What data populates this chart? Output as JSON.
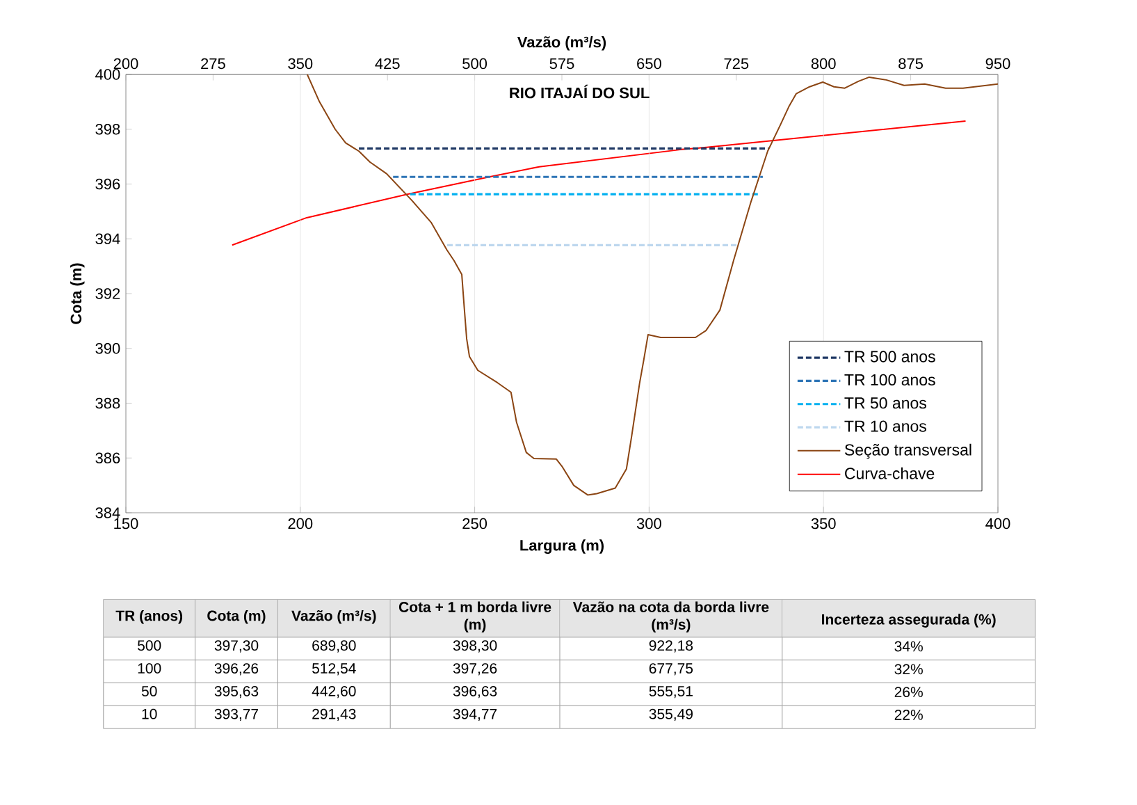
{
  "chart_data": {
    "type": "line",
    "title": "RIO ITAJAÍ DO SUL",
    "xlabel": "Largura (m)",
    "ylabel": "Cota (m)",
    "x2label": "Vazão (m³/s)",
    "xlim": [
      150,
      400
    ],
    "xticks": [
      150,
      200,
      250,
      300,
      350,
      400
    ],
    "ylim": [
      384,
      400
    ],
    "yticks": [
      384,
      386,
      388,
      390,
      392,
      394,
      396,
      398,
      400
    ],
    "x2lim": [
      200,
      950
    ],
    "x2ticks": [
      200,
      275,
      350,
      425,
      500,
      575,
      650,
      725,
      800,
      875,
      950
    ],
    "grid": "x",
    "legend": "bottom right",
    "series": [
      {
        "name": "TR 500 anos",
        "color": "#1f3864",
        "line_style": "dashed",
        "x": [
          216.8,
          334.2
        ],
        "values": [
          397.3,
          397.3
        ]
      },
      {
        "name": "TR 100 anos",
        "color": "#2e75b6",
        "line_style": "dashed",
        "x": [
          226.6,
          332.6
        ],
        "values": [
          396.26,
          396.26
        ]
      },
      {
        "name": "TR 50 anos",
        "color": "#00b0f0",
        "line_style": "dashed",
        "x": [
          231.5,
          331.2
        ],
        "values": [
          395.63,
          395.63
        ]
      },
      {
        "name": "TR 10 anos",
        "color": "#bdd7ee",
        "line_style": "dashed",
        "x": [
          242.1,
          325.6
        ],
        "values": [
          393.77,
          393.77
        ]
      },
      {
        "name": "Seção transversal",
        "color": "#8b4513",
        "line_style": "solid",
        "x": [
          202,
          205.5,
          210,
          213,
          216.8,
          220,
          224.8,
          232,
          237.5,
          242,
          244.1,
          246.3,
          247,
          247.7,
          248.5,
          250.9,
          256.5,
          260.4,
          262,
          264.8,
          267,
          273.4,
          275,
          278.4,
          282.4,
          285,
          290.3,
          293.5,
          295,
          297.3,
          298.5,
          299.7,
          303.3,
          313.3,
          316.3,
          320.3,
          324.2,
          329.2,
          334,
          337.6,
          340.2,
          342.2,
          346,
          349.8,
          353,
          356.1,
          360,
          363.1,
          368,
          373.1,
          379,
          385,
          390,
          400
        ],
        "values": [
          400,
          399.0,
          398.0,
          397.5,
          397.2,
          396.8,
          396.37,
          395.4,
          394.6,
          393.6,
          393.2,
          392.7,
          391.5,
          390.35,
          389.7,
          389.2,
          388.75,
          388.4,
          387.3,
          386.2,
          385.98,
          385.96,
          385.7,
          385.0,
          384.65,
          384.7,
          384.9,
          385.6,
          386.8,
          388.75,
          389.6,
          390.5,
          390.4,
          390.4,
          390.65,
          391.4,
          393.2,
          395.35,
          397.2,
          398.15,
          398.86,
          399.3,
          399.55,
          399.72,
          399.55,
          399.5,
          399.75,
          399.9,
          399.8,
          399.6,
          399.65,
          399.5,
          399.5,
          399.65
        ]
      },
      {
        "name": "Curva-chave",
        "color": "#ff0000",
        "line_style": "solid",
        "axis": "x2",
        "x": [
          291.43,
          355.49,
          442.6,
          512.54,
          555.51,
          677.75,
          689.8,
          922.18
        ],
        "values": [
          393.77,
          394.77,
          395.63,
          396.26,
          396.63,
          397.26,
          397.3,
          398.3
        ]
      }
    ],
    "annotations": [
      "TR (anos)",
      "Cota (m)",
      "Vazão (m³/s)",
      "Cota + 1 m borda livre (m)",
      "Vazão na cota da borda livre (m³/s)",
      "Incerteza assegurada (%)",
      "500",
      "397,30",
      "689,80",
      "398,30",
      "922,18",
      "34%",
      "100",
      "396,26",
      "512,54",
      "397,26",
      "677,75",
      "32%",
      "50",
      "395,63",
      "442,60",
      "396,63",
      "555,51",
      "26%",
      "10",
      "393,77",
      "291,43",
      "394,77",
      "355,49",
      "22%"
    ]
  }
}
